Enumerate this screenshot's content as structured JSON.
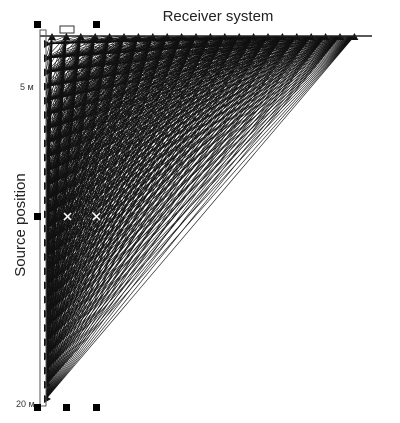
{
  "header": {
    "title": "Receiver system"
  },
  "axis": {
    "label": "Source position",
    "ticks": [
      "5 м",
      "20 м"
    ]
  }
}
